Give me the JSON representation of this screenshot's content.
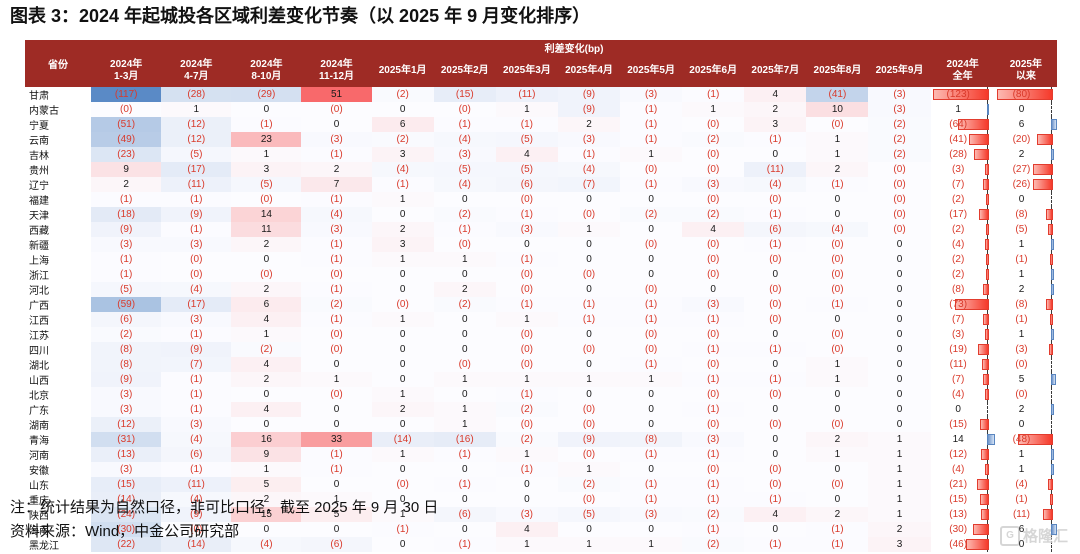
{
  "title": "图表 3：2024 年起城投各区域利差变化节奏（以 2025 年 9 月变化排序）",
  "note": "注：统计结果为自然口径，非可比口径，截至 2025 年 9 月 30 日",
  "source": "资料来源：Wind，中金公司研究部",
  "logo": {
    "text": "格隆汇",
    "mark": "G"
  },
  "colors": {
    "header_bg": "#9e2b25",
    "header_text": "#ffffff",
    "negative_text": "#d93a2b",
    "positive_text": "#1a1a1a",
    "scale_min_blue": "#5A8AC6",
    "scale_mid_white": "#FCFCFF",
    "scale_max_red": "#F8696B",
    "bar_negative_red": "#f5392a",
    "bar_positive_blue": "#6d93c8"
  },
  "chart_data": {
    "type": "heatmap",
    "band_title": "利差变化(bp)",
    "row_header": "省份",
    "columns": [
      "2024年\n1-3月",
      "2024年\n4-7月",
      "2024年\n8-10月",
      "2024年\n11-12月",
      "2025年1月",
      "2025年2月",
      "2025年3月",
      "2025年4月",
      "2025年5月",
      "2025年6月",
      "2025年7月",
      "2025年8月",
      "2025年9月",
      "2024年\n全年",
      "2025年\n以来"
    ],
    "heat_column_count": 13,
    "bar_column_indices": [
      13,
      14
    ],
    "negative_shown_in_parentheses": true,
    "rows": [
      {
        "province": "甘肃",
        "values": [
          "(117)",
          "(28)",
          "(29)",
          "51",
          "(2)",
          "(15)",
          "(11)",
          "(9)",
          "(3)",
          "(1)",
          "4",
          "(41)",
          "(3)",
          "(123)",
          "(80)"
        ]
      },
      {
        "province": "内蒙古",
        "values": [
          "(0)",
          "1",
          "0",
          "(0)",
          "0",
          "(0)",
          "1",
          "(9)",
          "(1)",
          "1",
          "2",
          "10",
          "(3)",
          "1",
          "0"
        ]
      },
      {
        "province": "宁夏",
        "values": [
          "(51)",
          "(12)",
          "(1)",
          "0",
          "6",
          "(1)",
          "(1)",
          "2",
          "(1)",
          "(0)",
          "3",
          "(0)",
          "(2)",
          "(64)",
          "6"
        ]
      },
      {
        "province": "云南",
        "values": [
          "(49)",
          "(12)",
          "23",
          "(3)",
          "(2)",
          "(4)",
          "(5)",
          "(3)",
          "(1)",
          "(2)",
          "(1)",
          "1",
          "(2)",
          "(41)",
          "(20)"
        ]
      },
      {
        "province": "吉林",
        "values": [
          "(23)",
          "(5)",
          "1",
          "(1)",
          "3",
          "(3)",
          "4",
          "(1)",
          "1",
          "(0)",
          "0",
          "1",
          "(2)",
          "(28)",
          "2"
        ]
      },
      {
        "province": "贵州",
        "values": [
          "9",
          "(17)",
          "3",
          "2",
          "(4)",
          "(5)",
          "(5)",
          "(4)",
          "(0)",
          "(0)",
          "(11)",
          "2",
          "(0)",
          "(3)",
          "(27)"
        ]
      },
      {
        "province": "辽宁",
        "values": [
          "2",
          "(11)",
          "(5)",
          "7",
          "(1)",
          "(4)",
          "(6)",
          "(7)",
          "(1)",
          "(3)",
          "(4)",
          "(1)",
          "(0)",
          "(7)",
          "(26)"
        ]
      },
      {
        "province": "福建",
        "values": [
          "(1)",
          "(1)",
          "(0)",
          "(1)",
          "1",
          "0",
          "(0)",
          "0",
          "0",
          "(0)",
          "(0)",
          "0",
          "(0)",
          "(2)",
          "0"
        ]
      },
      {
        "province": "天津",
        "values": [
          "(18)",
          "(9)",
          "14",
          "(4)",
          "0",
          "(2)",
          "(1)",
          "(0)",
          "(2)",
          "(2)",
          "(1)",
          "0",
          "(0)",
          "(17)",
          "(8)"
        ]
      },
      {
        "province": "西藏",
        "values": [
          "(9)",
          "(1)",
          "11",
          "(3)",
          "2",
          "(1)",
          "(3)",
          "1",
          "0",
          "4",
          "(6)",
          "(4)",
          "(0)",
          "(2)",
          "(5)"
        ]
      },
      {
        "province": "新疆",
        "values": [
          "(3)",
          "(3)",
          "2",
          "(1)",
          "3",
          "(0)",
          "0",
          "0",
          "(0)",
          "(0)",
          "(1)",
          "(0)",
          "0",
          "(4)",
          "1"
        ]
      },
      {
        "province": "上海",
        "values": [
          "(1)",
          "(0)",
          "0",
          "(1)",
          "1",
          "1",
          "(1)",
          "0",
          "0",
          "(0)",
          "(0)",
          "(0)",
          "0",
          "(2)",
          "(1)"
        ]
      },
      {
        "province": "浙江",
        "values": [
          "(1)",
          "(0)",
          "(0)",
          "(0)",
          "0",
          "0",
          "(0)",
          "(0)",
          "0",
          "(0)",
          "0",
          "(0)",
          "0",
          "(2)",
          "1"
        ]
      },
      {
        "province": "河北",
        "values": [
          "(5)",
          "(4)",
          "2",
          "(1)",
          "0",
          "2",
          "(0)",
          "0",
          "(0)",
          "0",
          "(0)",
          "(0)",
          "0",
          "(8)",
          "2"
        ]
      },
      {
        "province": "广西",
        "values": [
          "(59)",
          "(17)",
          "6",
          "(2)",
          "(0)",
          "(2)",
          "(1)",
          "(1)",
          "(1)",
          "(3)",
          "(0)",
          "(1)",
          "0",
          "(73)",
          "(8)"
        ]
      },
      {
        "province": "江西",
        "values": [
          "(6)",
          "(3)",
          "4",
          "(1)",
          "1",
          "0",
          "1",
          "(1)",
          "(1)",
          "(1)",
          "(0)",
          "0",
          "0",
          "(7)",
          "(1)"
        ]
      },
      {
        "province": "江苏",
        "values": [
          "(2)",
          "(1)",
          "1",
          "(0)",
          "0",
          "0",
          "(0)",
          "0",
          "(0)",
          "(0)",
          "0",
          "(0)",
          "0",
          "(3)",
          "1"
        ]
      },
      {
        "province": "四川",
        "values": [
          "(8)",
          "(9)",
          "(2)",
          "(0)",
          "0",
          "0",
          "(0)",
          "(0)",
          "(0)",
          "(1)",
          "(1)",
          "(0)",
          "0",
          "(19)",
          "(3)"
        ]
      },
      {
        "province": "湖北",
        "values": [
          "(8)",
          "(7)",
          "4",
          "0",
          "0",
          "(0)",
          "(0)",
          "0",
          "(1)",
          "(0)",
          "0",
          "1",
          "0",
          "(11)",
          "(0)"
        ]
      },
      {
        "province": "山西",
        "values": [
          "(9)",
          "(1)",
          "2",
          "1",
          "0",
          "1",
          "1",
          "1",
          "1",
          "(1)",
          "(1)",
          "1",
          "0",
          "(7)",
          "5"
        ]
      },
      {
        "province": "北京",
        "values": [
          "(3)",
          "(1)",
          "0",
          "(0)",
          "1",
          "0",
          "(1)",
          "0",
          "0",
          "(0)",
          "(0)",
          "0",
          "0",
          "(4)",
          "(0)"
        ]
      },
      {
        "province": "广东",
        "values": [
          "(3)",
          "(1)",
          "4",
          "0",
          "2",
          "1",
          "(2)",
          "(0)",
          "0",
          "(1)",
          "0",
          "0",
          "0",
          "0",
          "2"
        ]
      },
      {
        "province": "湖南",
        "values": [
          "(12)",
          "(3)",
          "0",
          "0",
          "0",
          "1",
          "(0)",
          "(0)",
          "0",
          "(0)",
          "(0)",
          "(0)",
          "0",
          "(15)",
          "0"
        ]
      },
      {
        "province": "青海",
        "values": [
          "(31)",
          "(4)",
          "16",
          "33",
          "(14)",
          "(16)",
          "(2)",
          "(9)",
          "(8)",
          "(3)",
          "0",
          "2",
          "1",
          "14",
          "(48)"
        ]
      },
      {
        "province": "河南",
        "values": [
          "(13)",
          "(6)",
          "9",
          "(1)",
          "1",
          "(1)",
          "1",
          "(0)",
          "(1)",
          "(1)",
          "0",
          "1",
          "1",
          "(12)",
          "1"
        ]
      },
      {
        "province": "安徽",
        "values": [
          "(3)",
          "(1)",
          "1",
          "(1)",
          "0",
          "0",
          "(1)",
          "1",
          "0",
          "(0)",
          "(0)",
          "0",
          "1",
          "(4)",
          "1"
        ]
      },
      {
        "province": "山东",
        "values": [
          "(15)",
          "(11)",
          "5",
          "0",
          "(0)",
          "(1)",
          "0",
          "(2)",
          "(1)",
          "(1)",
          "(0)",
          "(0)",
          "1",
          "(21)",
          "(4)"
        ]
      },
      {
        "province": "重庆",
        "values": [
          "(14)",
          "(4)",
          "2",
          "1",
          "0",
          "0",
          "0",
          "(0)",
          "(1)",
          "(1)",
          "(1)",
          "0",
          "1",
          "(15)",
          "(1)"
        ]
      },
      {
        "province": "陕西",
        "values": [
          "(24)",
          "(9)",
          "15",
          "5",
          "1",
          "(6)",
          "(3)",
          "(5)",
          "(3)",
          "(2)",
          "4",
          "2",
          "1",
          "(13)",
          "(11)"
        ]
      },
      {
        "province": "海南",
        "values": [
          "(30)",
          "(0)",
          "0",
          "0",
          "(1)",
          "0",
          "4",
          "0",
          "0",
          "(1)",
          "0",
          "(1)",
          "2",
          "(30)",
          "6"
        ]
      },
      {
        "province": "黑龙江",
        "values": [
          "(22)",
          "(14)",
          "(4)",
          "(6)",
          "0",
          "(1)",
          "1",
          "1",
          "1",
          "(2)",
          "(1)",
          "(1)",
          "3",
          "(46)",
          "0"
        ]
      }
    ]
  }
}
